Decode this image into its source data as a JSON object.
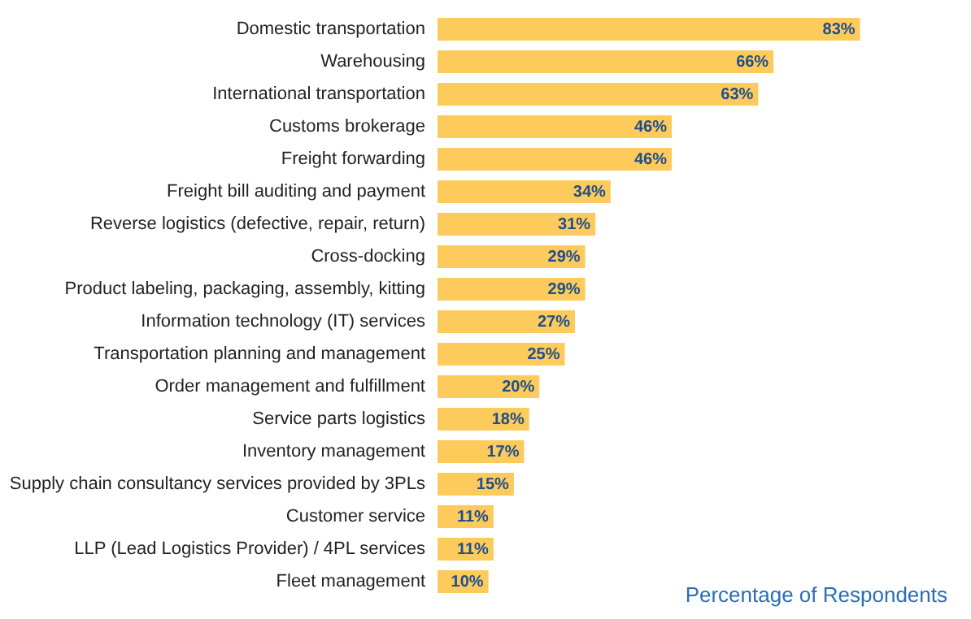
{
  "chart_data": {
    "type": "bar",
    "orientation": "horizontal",
    "xlabel": "Percentage of Respondents",
    "categories": [
      "Domestic transportation",
      "Warehousing",
      "International transportation",
      "Customs brokerage",
      "Freight forwarding",
      "Freight bill auditing and payment",
      "Reverse logistics (defective, repair, return)",
      "Cross-docking",
      "Product labeling, packaging, assembly, kitting",
      "Information technology (IT) services",
      "Transportation planning and management",
      "Order management and fulfillment",
      "Service parts logistics",
      "Inventory management",
      "Supply chain consultancy services provided by 3PLs",
      "Customer service",
      "LLP (Lead Logistics Provider) / 4PL services",
      "Fleet management"
    ],
    "values": [
      83,
      66,
      63,
      46,
      46,
      34,
      31,
      29,
      29,
      27,
      25,
      20,
      18,
      17,
      15,
      11,
      11,
      10
    ],
    "value_labels": [
      "83%",
      "66%",
      "63%",
      "46%",
      "46%",
      "34%",
      "31%",
      "29%",
      "29%",
      "27%",
      "25%",
      "20%",
      "18%",
      "17%",
      "15%",
      "11%",
      "11%",
      "10%"
    ],
    "color": "#fdca5c",
    "tick_labels": "y"
  }
}
